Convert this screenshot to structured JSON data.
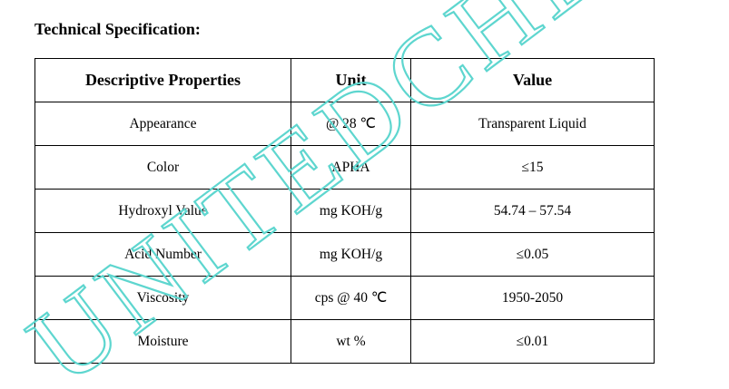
{
  "header": {
    "title": "Technical Specification:"
  },
  "table": {
    "columns": [
      "Descriptive Properties",
      "Unit",
      "Value"
    ],
    "rows": [
      [
        "Appearance",
        "@ 28 ℃",
        "Transparent Liquid"
      ],
      [
        "Color",
        "APHA",
        "≤15"
      ],
      [
        "Hydroxyl Value",
        "mg KOH/g",
        "54.74 – 57.54"
      ],
      [
        "Acid Number",
        "mg KOH/g",
        "≤0.05"
      ],
      [
        "Viscosity",
        "cps @ 40 ℃",
        "1950-2050"
      ],
      [
        "Moisture",
        "wt %",
        "≤0.01"
      ]
    ]
  },
  "watermark": "UNITEDCHE"
}
